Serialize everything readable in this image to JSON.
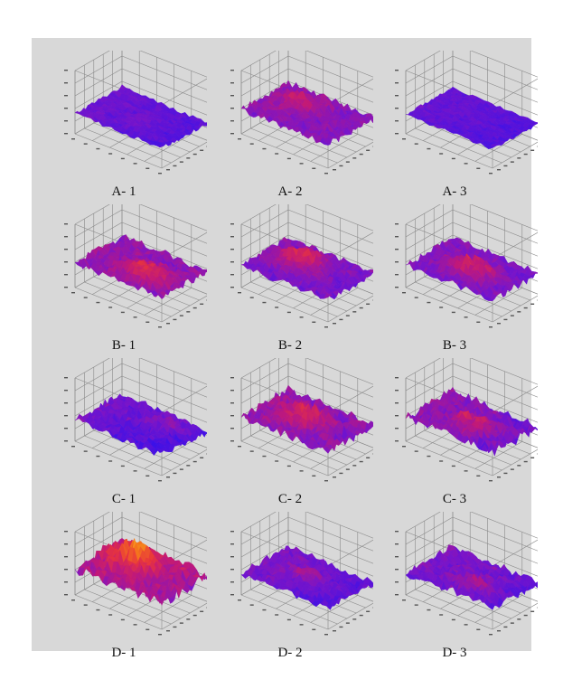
{
  "figure": {
    "background": "#d8d8d8",
    "colormap": [
      "#3c10e8",
      "#7a14c8",
      "#c0187a",
      "#e8343c",
      "#f4761c",
      "#fbb21e",
      "#ffef6a"
    ],
    "panels": [
      {
        "label": "A- 1",
        "roughness": 0.25,
        "level": 0.35,
        "hotspot": 0.1,
        "purple_bias": 0.3
      },
      {
        "label": "A- 2",
        "roughness": 0.45,
        "level": 0.55,
        "hotspot": 0.3,
        "purple_bias": 0.1
      },
      {
        "label": "A- 3",
        "roughness": 0.2,
        "level": 0.3,
        "hotspot": 0.05,
        "purple_bias": 0.25
      },
      {
        "label": "B- 1",
        "roughness": 0.5,
        "level": 0.55,
        "hotspot": 0.55,
        "purple_bias": 0.05
      },
      {
        "label": "B- 2",
        "roughness": 0.45,
        "level": 0.45,
        "hotspot": 0.6,
        "purple_bias": 0.1
      },
      {
        "label": "B- 3",
        "roughness": 0.45,
        "level": 0.45,
        "hotspot": 0.55,
        "purple_bias": 0.1
      },
      {
        "label": "C- 1",
        "roughness": 0.5,
        "level": 0.35,
        "hotspot": 0.3,
        "purple_bias": 0.55
      },
      {
        "label": "C- 2",
        "roughness": 0.6,
        "level": 0.55,
        "hotspot": 0.5,
        "purple_bias": 0.1
      },
      {
        "label": "C- 3",
        "roughness": 0.65,
        "level": 0.5,
        "hotspot": 0.5,
        "purple_bias": 0.35
      },
      {
        "label": "D- 1",
        "roughness": 0.75,
        "level": 0.7,
        "hotspot": 0.85,
        "purple_bias": 0.05
      },
      {
        "label": "D- 2",
        "roughness": 0.45,
        "level": 0.4,
        "hotspot": 0.25,
        "purple_bias": 0.35
      },
      {
        "label": "D- 3",
        "roughness": 0.5,
        "level": 0.4,
        "hotspot": 0.35,
        "purple_bias": 0.35
      }
    ]
  }
}
